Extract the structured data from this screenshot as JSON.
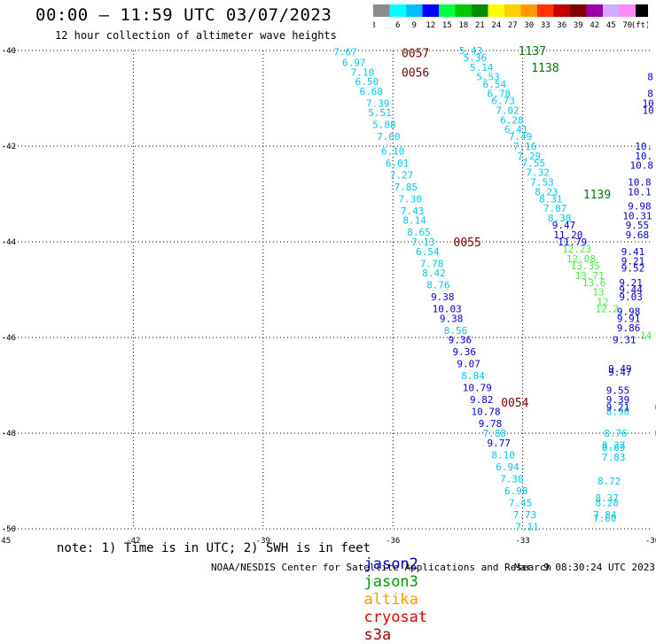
{
  "header": {
    "title": "00:00 — 11:59 UTC 03/07/2023",
    "subtitle": "12 hour collection of altimeter wave heights"
  },
  "legend": {
    "unit": "(ft)",
    "bins": [
      {
        "label": "3",
        "color": "#8c8c8c"
      },
      {
        "label": "6",
        "color": "#00ffff"
      },
      {
        "label": "9",
        "color": "#00bfff"
      },
      {
        "label": "12",
        "color": "#0000ff"
      },
      {
        "label": "15",
        "color": "#00ff40"
      },
      {
        "label": "18",
        "color": "#00c800"
      },
      {
        "label": "21",
        "color": "#008c00"
      },
      {
        "label": "24",
        "color": "#ffff00"
      },
      {
        "label": "27",
        "color": "#ffd000"
      },
      {
        "label": "30",
        "color": "#ff9900"
      },
      {
        "label": "33",
        "color": "#ff3300"
      },
      {
        "label": "36",
        "color": "#c00000"
      },
      {
        "label": "39",
        "color": "#800000"
      },
      {
        "label": "42",
        "color": "#9900aa"
      },
      {
        "label": "45",
        "color": "#d4aaff"
      },
      {
        "label": "70",
        "color": "#ff88ff"
      },
      {
        "label": "",
        "color": "#000000"
      }
    ]
  },
  "footer": {
    "note": "note: 1) Time is in UTC; 2) SWH is in feet",
    "satellites": [
      {
        "name": "jason2",
        "color": "#0000cc"
      },
      {
        "name": "jason3",
        "color": "#009900"
      },
      {
        "name": "altika",
        "color": "#ff9900"
      },
      {
        "name": "cryosat",
        "color": "#dd0000"
      },
      {
        "name": "s3a",
        "color": "#990000"
      }
    ],
    "credit": "NOAA/NESDIS Center for Satellite Applications and Research",
    "timestamp": "Mar  9 08:30:24 UTC 2023"
  },
  "chart_data": {
    "type": "scatter",
    "xlim": [
      -45,
      -30
    ],
    "ylim": [
      -50,
      -40
    ],
    "x_ticks": [
      "-45",
      "-42",
      "-39",
      "-36",
      "-33",
      "-30"
    ],
    "y_ticks": [
      "-40",
      "-42",
      "-44",
      "-46",
      "-48",
      "-50"
    ],
    "grid": true,
    "colors": {
      "c": "#00c8e8",
      "b": "#0000cc",
      "g": "#44ee44",
      "dg": "#007700",
      "m": "#770000",
      "r": "#ee0000"
    },
    "time_labels": [
      {
        "text": "0057",
        "lon": -35.8,
        "lat": -40.05,
        "c": "m"
      },
      {
        "text": "0056",
        "lon": -35.8,
        "lat": -40.45,
        "c": "m"
      },
      {
        "text": "0055",
        "lon": -34.6,
        "lat": -44.0,
        "c": "m"
      },
      {
        "text": "0054",
        "lon": -33.5,
        "lat": -47.35,
        "c": "m"
      },
      {
        "text": "1137",
        "lon": -33.1,
        "lat": -40.0,
        "c": "dg"
      },
      {
        "text": "1138",
        "lon": -32.8,
        "lat": -40.35,
        "c": "dg"
      },
      {
        "text": "1139",
        "lon": -31.6,
        "lat": -43.0,
        "c": "dg"
      },
      {
        "text": "0",
        "lon": -29.95,
        "lat": -47.45,
        "c": "r"
      },
      {
        "text": "02",
        "lon": -29.95,
        "lat": -48.0,
        "c": "r"
      },
      {
        "text": "020",
        "lon": -29.85,
        "lat": -48.95,
        "c": "r"
      },
      {
        "text": "020",
        "lon": -29.75,
        "lat": -49.25,
        "c": "r"
      }
    ],
    "swh": [
      {
        "v": "7.67",
        "lon": -37.1,
        "lat": -40.03,
        "c": "c"
      },
      {
        "v": "6.97",
        "lon": -36.9,
        "lat": -40.25,
        "c": "c"
      },
      {
        "v": "7.10",
        "lon": -36.7,
        "lat": -40.45,
        "c": "c"
      },
      {
        "v": "6.50",
        "lon": -36.6,
        "lat": -40.65,
        "c": "c"
      },
      {
        "v": "6.68",
        "lon": -36.5,
        "lat": -40.85,
        "c": "c"
      },
      {
        "v": "7.39",
        "lon": -36.35,
        "lat": -41.1,
        "c": "c"
      },
      {
        "v": "5.51",
        "lon": -36.3,
        "lat": -41.3,
        "c": "c"
      },
      {
        "v": "5.88",
        "lon": -36.2,
        "lat": -41.55,
        "c": "c"
      },
      {
        "v": "7.00",
        "lon": -36.1,
        "lat": -41.8,
        "c": "c"
      },
      {
        "v": "6.10",
        "lon": -36.0,
        "lat": -42.1,
        "c": "c"
      },
      {
        "v": "6.01",
        "lon": -35.9,
        "lat": -42.35,
        "c": "c"
      },
      {
        "v": "7.27",
        "lon": -35.8,
        "lat": -42.6,
        "c": "c"
      },
      {
        "v": "7.85",
        "lon": -35.7,
        "lat": -42.85,
        "c": "c"
      },
      {
        "v": "7.30",
        "lon": -35.6,
        "lat": -43.1,
        "c": "c"
      },
      {
        "v": "7.43",
        "lon": -35.55,
        "lat": -43.35,
        "c": "c"
      },
      {
        "v": "8.14",
        "lon": -35.5,
        "lat": -43.55,
        "c": "c"
      },
      {
        "v": "8.65",
        "lon": -35.4,
        "lat": -43.8,
        "c": "c"
      },
      {
        "v": "7.13",
        "lon": -35.3,
        "lat": -44.0,
        "c": "c"
      },
      {
        "v": "6.54",
        "lon": -35.2,
        "lat": -44.2,
        "c": "c"
      },
      {
        "v": "7.78",
        "lon": -35.1,
        "lat": -44.45,
        "c": "c"
      },
      {
        "v": "8.42",
        "lon": -35.05,
        "lat": -44.65,
        "c": "c"
      },
      {
        "v": "8.76",
        "lon": -34.95,
        "lat": -44.9,
        "c": "c"
      },
      {
        "v": "9.38",
        "lon": -34.85,
        "lat": -45.15,
        "c": "b"
      },
      {
        "v": "10.03",
        "lon": -34.75,
        "lat": -45.4,
        "c": "b"
      },
      {
        "v": "9.38",
        "lon": -34.65,
        "lat": -45.6,
        "c": "b"
      },
      {
        "v": "8.56",
        "lon": -34.55,
        "lat": -45.85,
        "c": "c"
      },
      {
        "v": "9.36",
        "lon": -34.45,
        "lat": -46.05,
        "c": "b"
      },
      {
        "v": "9.36",
        "lon": -34.35,
        "lat": -46.3,
        "c": "b"
      },
      {
        "v": "9.07",
        "lon": -34.25,
        "lat": -46.55,
        "c": "b"
      },
      {
        "v": "8.84",
        "lon": -34.15,
        "lat": -46.8,
        "c": "c"
      },
      {
        "v": "10.79",
        "lon": -34.05,
        "lat": -47.05,
        "c": "b"
      },
      {
        "v": "9.82",
        "lon": -33.95,
        "lat": -47.3,
        "c": "b"
      },
      {
        "v": "10.78",
        "lon": -33.85,
        "lat": -47.55,
        "c": "b"
      },
      {
        "v": "9.78",
        "lon": -33.75,
        "lat": -47.8,
        "c": "b"
      },
      {
        "v": "7.88",
        "lon": -33.65,
        "lat": -48.0,
        "c": "c"
      },
      {
        "v": "9.77",
        "lon": -33.55,
        "lat": -48.2,
        "c": "b"
      },
      {
        "v": "8.10",
        "lon": -33.45,
        "lat": -48.45,
        "c": "c"
      },
      {
        "v": "6.94",
        "lon": -33.35,
        "lat": -48.7,
        "c": "c"
      },
      {
        "v": "7.38",
        "lon": -33.25,
        "lat": -48.95,
        "c": "c"
      },
      {
        "v": "6.98",
        "lon": -33.15,
        "lat": -49.2,
        "c": "c"
      },
      {
        "v": "7.45",
        "lon": -33.05,
        "lat": -49.45,
        "c": "c"
      },
      {
        "v": "7.73",
        "lon": -32.95,
        "lat": -49.7,
        "c": "c"
      },
      {
        "v": "7.11",
        "lon": -32.9,
        "lat": -49.95,
        "c": "c"
      },
      {
        "v": "5.43",
        "lon": -34.2,
        "lat": -40.0,
        "c": "c"
      },
      {
        "v": "5.36",
        "lon": -34.1,
        "lat": -40.15,
        "c": "c"
      },
      {
        "v": "5.14",
        "lon": -33.95,
        "lat": -40.35,
        "c": "c"
      },
      {
        "v": "5.53",
        "lon": -33.8,
        "lat": -40.55,
        "c": "c"
      },
      {
        "v": "6.54",
        "lon": -33.65,
        "lat": -40.7,
        "c": "c"
      },
      {
        "v": "6.78",
        "lon": -33.55,
        "lat": -40.9,
        "c": "c"
      },
      {
        "v": "6.73",
        "lon": -33.45,
        "lat": -41.05,
        "c": "c"
      },
      {
        "v": "7.02",
        "lon": -33.35,
        "lat": -41.25,
        "c": "c"
      },
      {
        "v": "6.28",
        "lon": -33.25,
        "lat": -41.45,
        "c": "c"
      },
      {
        "v": "6.41",
        "lon": -33.15,
        "lat": -41.65,
        "c": "c"
      },
      {
        "v": "7.49",
        "lon": -33.05,
        "lat": -41.8,
        "c": "c"
      },
      {
        "v": "7.16",
        "lon": -32.95,
        "lat": -42.0,
        "c": "c"
      },
      {
        "v": "7.29",
        "lon": -32.85,
        "lat": -42.2,
        "c": "c"
      },
      {
        "v": "7.55",
        "lon": -32.75,
        "lat": -42.35,
        "c": "c"
      },
      {
        "v": "7.32",
        "lon": -32.65,
        "lat": -42.55,
        "c": "c"
      },
      {
        "v": "7.53",
        "lon": -32.55,
        "lat": -42.75,
        "c": "c"
      },
      {
        "v": "8.23",
        "lon": -32.45,
        "lat": -42.95,
        "c": "c"
      },
      {
        "v": "8.31",
        "lon": -32.35,
        "lat": -43.1,
        "c": "c"
      },
      {
        "v": "7.87",
        "lon": -32.25,
        "lat": -43.3,
        "c": "c"
      },
      {
        "v": "8.38",
        "lon": -32.15,
        "lat": -43.5,
        "c": "c"
      },
      {
        "v": "9.47",
        "lon": -32.05,
        "lat": -43.65,
        "c": "b"
      },
      {
        "v": "11.20",
        "lon": -31.95,
        "lat": -43.85,
        "c": "b"
      },
      {
        "v": "11.79",
        "lon": -31.85,
        "lat": -44.0,
        "c": "b"
      },
      {
        "v": "12.23",
        "lon": -31.75,
        "lat": -44.15,
        "c": "g"
      },
      {
        "v": "12.08",
        "lon": -31.65,
        "lat": -44.35,
        "c": "g"
      },
      {
        "v": "13.35",
        "lon": -31.55,
        "lat": -44.5,
        "c": "g"
      },
      {
        "v": "13.71",
        "lon": -31.45,
        "lat": -44.7,
        "c": "g"
      },
      {
        "v": "13.6",
        "lon": -31.35,
        "lat": -44.85,
        "c": "g"
      },
      {
        "v": "13",
        "lon": -31.25,
        "lat": -45.05,
        "c": "g"
      },
      {
        "v": "12",
        "lon": -31.15,
        "lat": -45.25,
        "c": "g"
      },
      {
        "v": "12.2",
        "lon": -31.05,
        "lat": -45.4,
        "c": "g"
      },
      {
        "v": "8",
        "lon": -30.05,
        "lat": -40.55,
        "c": "b"
      },
      {
        "v": "8",
        "lon": -30.05,
        "lat": -40.9,
        "c": "b"
      },
      {
        "v": "10",
        "lon": -30.1,
        "lat": -41.1,
        "c": "b"
      },
      {
        "v": "10",
        "lon": -30.1,
        "lat": -41.25,
        "c": "b"
      },
      {
        "v": "10.",
        "lon": -30.2,
        "lat": -42.0,
        "c": "b"
      },
      {
        "v": "10.",
        "lon": -30.2,
        "lat": -42.2,
        "c": "b"
      },
      {
        "v": "10.8",
        "lon": -30.25,
        "lat": -42.4,
        "c": "b"
      },
      {
        "v": "10.8",
        "lon": -30.3,
        "lat": -42.75,
        "c": "b"
      },
      {
        "v": "10.1",
        "lon": -30.3,
        "lat": -42.95,
        "c": "b"
      },
      {
        "v": "9.98",
        "lon": -30.3,
        "lat": -43.25,
        "c": "b"
      },
      {
        "v": "10.31",
        "lon": -30.35,
        "lat": -43.45,
        "c": "b"
      },
      {
        "v": "9.55",
        "lon": -30.35,
        "lat": -43.65,
        "c": "b"
      },
      {
        "v": "9.68",
        "lon": -30.35,
        "lat": -43.85,
        "c": "b"
      },
      {
        "v": "9.41",
        "lon": -30.45,
        "lat": -44.2,
        "c": "b"
      },
      {
        "v": "9.21",
        "lon": -30.45,
        "lat": -44.4,
        "c": "b"
      },
      {
        "v": "9.52",
        "lon": -30.45,
        "lat": -44.55,
        "c": "b"
      },
      {
        "v": "9.21",
        "lon": -30.5,
        "lat": -44.85,
        "c": "b"
      },
      {
        "v": "9.44",
        "lon": -30.5,
        "lat": -45.0,
        "c": "b"
      },
      {
        "v": "9.03",
        "lon": -30.5,
        "lat": -45.15,
        "c": "b"
      },
      {
        "v": "9.98",
        "lon": -30.55,
        "lat": -45.45,
        "c": "b"
      },
      {
        "v": "9.91",
        "lon": -30.55,
        "lat": -45.6,
        "c": "b"
      },
      {
        "v": "9.86",
        "lon": -30.55,
        "lat": -45.8,
        "c": "b"
      },
      {
        "v": "14",
        "lon": -30.15,
        "lat": -45.95,
        "c": "g"
      },
      {
        "v": "9.31",
        "lon": -30.65,
        "lat": -46.05,
        "c": "b"
      },
      {
        "v": "9.49",
        "lon": -30.75,
        "lat": -46.65,
        "c": "b"
      },
      {
        "v": "9.47",
        "lon": -30.75,
        "lat": -46.72,
        "c": "b"
      },
      {
        "v": "9.55",
        "lon": -30.8,
        "lat": -47.1,
        "c": "b"
      },
      {
        "v": "9.39",
        "lon": -30.8,
        "lat": -47.3,
        "c": "b"
      },
      {
        "v": "8.90",
        "lon": -30.8,
        "lat": -47.55,
        "c": "c"
      },
      {
        "v": "9.21",
        "lon": -30.8,
        "lat": -47.45,
        "c": "b"
      },
      {
        "v": "8.76",
        "lon": -30.85,
        "lat": -48.0,
        "c": "c"
      },
      {
        "v": "8.37",
        "lon": -30.9,
        "lat": -48.25,
        "c": "c"
      },
      {
        "v": "8.69",
        "lon": -30.9,
        "lat": -48.3,
        "c": "c"
      },
      {
        "v": "7.83",
        "lon": -30.9,
        "lat": -48.5,
        "c": "c"
      },
      {
        "v": "8.72",
        "lon": -31.0,
        "lat": -49.0,
        "c": "c"
      },
      {
        "v": "8.37",
        "lon": -31.05,
        "lat": -49.35,
        "c": "c"
      },
      {
        "v": "8.28",
        "lon": -31.05,
        "lat": -49.45,
        "c": "c"
      },
      {
        "v": "7.84",
        "lon": -31.1,
        "lat": -49.7,
        "c": "c"
      },
      {
        "v": "7.60",
        "lon": -31.1,
        "lat": -49.78,
        "c": "c"
      }
    ]
  }
}
